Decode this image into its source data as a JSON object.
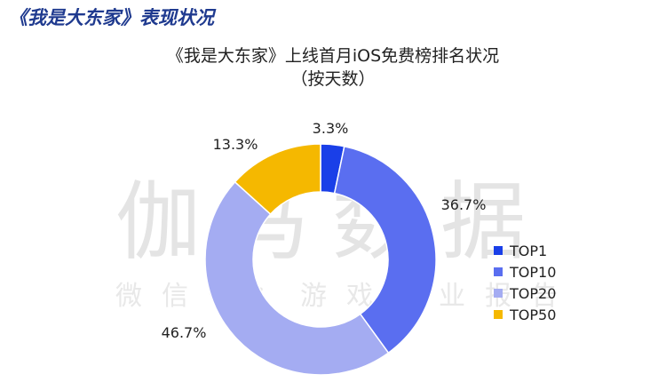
{
  "header": {
    "section_title": "《我是大东家》表现状况"
  },
  "watermark": {
    "main": "伽马数据",
    "sub": "微信号：游戏产业报告"
  },
  "chart_data": {
    "type": "pie",
    "donut": true,
    "title_line1": "《我是大东家》上线首月iOS免费榜排名状况",
    "title_line2": "（按天数）",
    "categories": [
      "TOP1",
      "TOP10",
      "TOP20",
      "TOP50"
    ],
    "values": [
      3.3,
      36.7,
      46.7,
      13.3
    ],
    "value_labels": [
      "3.3%",
      "36.7%",
      "46.7%",
      "13.3%"
    ],
    "colors": [
      "#1a3fe8",
      "#5a6ef0",
      "#a4acf2",
      "#f5b800"
    ],
    "legend_position": "right"
  }
}
